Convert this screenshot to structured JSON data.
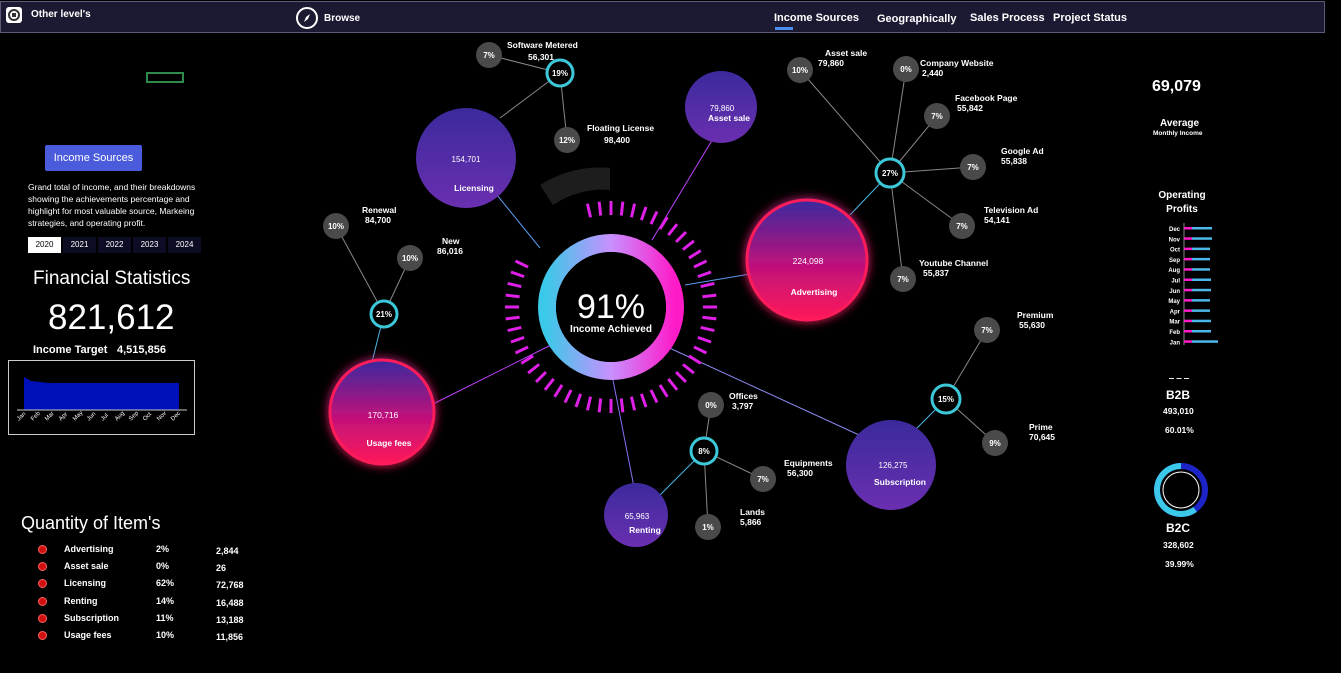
{
  "topbar": {
    "title": "Other level's",
    "browse": "Browse",
    "tabs": [
      "Income Sources",
      "Geographically",
      "Sales Process",
      "Project Status"
    ]
  },
  "left": {
    "button": "Income Sources",
    "description": "Grand total of income, and their breakdowns showing the achievements percentage and highlight for most valuable source, Markeing strategies, and operating profit.",
    "years": [
      "2020",
      "2021",
      "2022",
      "2023",
      "2024"
    ],
    "fin_title": "Financial Statistics",
    "fin_value": "821,612",
    "target_label": "Income Target",
    "target_value": "4,515,856",
    "months": [
      "Jan",
      "Feb",
      "Mar",
      "Apr",
      "May",
      "Jun",
      "Jul",
      "Aug",
      "Sep",
      "Oct",
      "Nov",
      "Dec"
    ],
    "qty_title": "Quantity of Item's",
    "qty": [
      {
        "name": "Advertising",
        "pct": "2%",
        "value": "2,844"
      },
      {
        "name": "Asset sale",
        "pct": "0%",
        "value": "26"
      },
      {
        "name": "Licensing",
        "pct": "62%",
        "value": "72,768"
      },
      {
        "name": "Renting",
        "pct": "14%",
        "value": "16,488"
      },
      {
        "name": "Subscription",
        "pct": "11%",
        "value": "13,188"
      },
      {
        "name": "Usage fees",
        "pct": "10%",
        "value": "11,856"
      }
    ]
  },
  "center": {
    "pct": "91%",
    "label": "Income Achieved",
    "achieved_fraction": 0.91
  },
  "bubbles": {
    "licensing": {
      "value": "154,701",
      "label": "Licensing"
    },
    "asset": {
      "value": "79,860",
      "label": "Asset sale"
    },
    "advertising": {
      "value": "224,098",
      "label": "Advertising"
    },
    "usage": {
      "value": "170,716",
      "label": "Usage fees"
    },
    "renting": {
      "value": "65,963",
      "label": "Renting"
    },
    "subscription": {
      "value": "126,275",
      "label": "Subscription"
    }
  },
  "hubs": {
    "software": "19%",
    "usage": "21%",
    "advertising": "27%",
    "renting": "8%",
    "subscription": "15%"
  },
  "leaves": {
    "sw_metered": {
      "pct": "7%",
      "name": "Software Metered",
      "value": "56,301"
    },
    "floating": {
      "pct": "12%",
      "name": "Floating License",
      "value": "98,400"
    },
    "renewal": {
      "pct": "10%",
      "name": "Renewal",
      "value": "84,700"
    },
    "new": {
      "pct": "10%",
      "name": "New",
      "value": "86,016"
    },
    "asset_sale": {
      "pct": "10%",
      "name": "Asset sale",
      "value": "79,860"
    },
    "company": {
      "pct": "0%",
      "name": "Company Website",
      "value": "2,440"
    },
    "facebook": {
      "pct": "7%",
      "name": "Facebook Page",
      "value": "55,842"
    },
    "google": {
      "pct": "7%",
      "name": "Google Ad",
      "value": "55,838"
    },
    "television": {
      "pct": "7%",
      "name": "Television Ad",
      "value": "54,141"
    },
    "youtube": {
      "pct": "7%",
      "name": "Youtube Channel",
      "value": "55,837"
    },
    "offices": {
      "pct": "0%",
      "name": "Offices",
      "value": "3,797"
    },
    "equipments": {
      "pct": "7%",
      "name": "Equipments",
      "value": "56,300"
    },
    "lands": {
      "pct": "1%",
      "name": "Lands",
      "value": "5,866"
    },
    "premium": {
      "pct": "7%",
      "name": "Premium",
      "value": "55,630"
    },
    "prime": {
      "pct": "9%",
      "name": "Prime",
      "value": "70,645"
    }
  },
  "right": {
    "avg_value": "69,079",
    "avg_label": "Average",
    "avg_sub": "Monthly Income",
    "op_title": "Operating Profits",
    "op_months": [
      "Dec",
      "Nov",
      "Oct",
      "Sep",
      "Aug",
      "Jul",
      "Jun",
      "May",
      "Apr",
      "Mar",
      "Feb",
      "Jan"
    ],
    "b2b_label": "B2B",
    "b2b_value": "493,010",
    "b2b_pct": "60.01%",
    "b2c_label": "B2C",
    "b2c_value": "328,602",
    "b2c_pct": "39.99%",
    "b2b_fraction": 0.6001
  },
  "colors": {
    "accent": "#4a5bdc",
    "hub_ring": "#3cc8d8",
    "magenta": "#ff1a8c",
    "purple": "#5a2ab0",
    "navbg": "#1c1a33"
  }
}
